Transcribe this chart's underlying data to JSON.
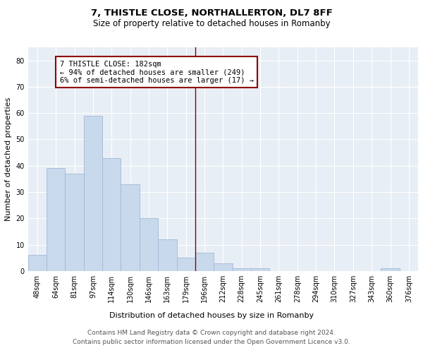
{
  "title": "7, THISTLE CLOSE, NORTHALLERTON, DL7 8FF",
  "subtitle": "Size of property relative to detached houses in Romanby",
  "xlabel": "Distribution of detached houses by size in Romanby",
  "ylabel": "Number of detached properties",
  "bar_labels": [
    "48sqm",
    "64sqm",
    "81sqm",
    "97sqm",
    "114sqm",
    "130sqm",
    "146sqm",
    "163sqm",
    "179sqm",
    "196sqm",
    "212sqm",
    "228sqm",
    "245sqm",
    "261sqm",
    "278sqm",
    "294sqm",
    "310sqm",
    "327sqm",
    "343sqm",
    "360sqm",
    "376sqm"
  ],
  "bar_values": [
    6,
    39,
    37,
    59,
    43,
    33,
    20,
    12,
    5,
    7,
    3,
    1,
    1,
    0,
    0,
    0,
    0,
    0,
    0,
    1,
    0
  ],
  "bar_color": "#c9d9ec",
  "bar_edgecolor": "#a0b8d8",
  "vline_x": 8.5,
  "vline_color": "#8b0000",
  "annotation_text": "7 THISTLE CLOSE: 182sqm\n← 94% of detached houses are smaller (249)\n6% of semi-detached houses are larger (17) →",
  "annotation_box_color": "#8b0000",
  "annotation_bg": "#ffffff",
  "ylim": [
    0,
    85
  ],
  "yticks": [
    0,
    10,
    20,
    30,
    40,
    50,
    60,
    70,
    80
  ],
  "bg_color": "#e8eef5",
  "footer_line1": "Contains HM Land Registry data © Crown copyright and database right 2024.",
  "footer_line2": "Contains public sector information licensed under the Open Government Licence v3.0.",
  "title_fontsize": 9.5,
  "subtitle_fontsize": 8.5,
  "xlabel_fontsize": 8,
  "ylabel_fontsize": 8,
  "tick_fontsize": 7,
  "annotation_fontsize": 7.5,
  "footer_fontsize": 6.5
}
